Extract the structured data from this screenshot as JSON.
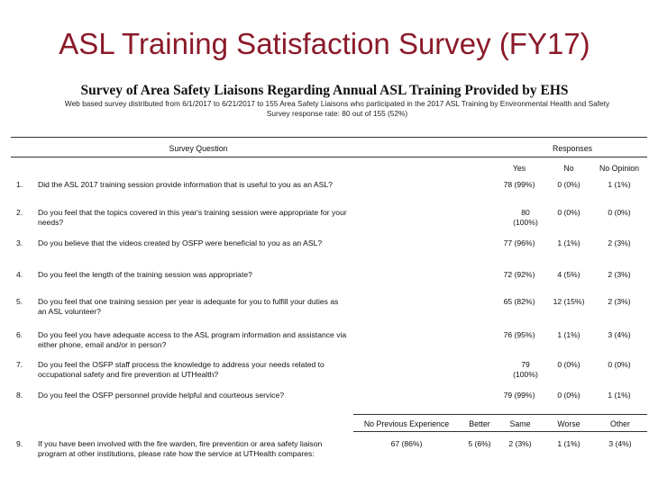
{
  "slide_title": "ASL Training Satisfaction Survey (FY17)",
  "survey": {
    "title": "Survey of Area Safety Liaisons Regarding Annual ASL Training Provided by EHS",
    "description": "Web based survey distributed from 6/1/2017 to 6/21/2017 to 155 Area Safety Liaisons who participated in the 2017 ASL Training by Environmental Health and Safety",
    "response_rate": "Survey response rate: 80 out of 155 (52%)"
  },
  "table": {
    "header_question": "Survey Question",
    "header_responses": "Responses",
    "response_columns": [
      "Yes",
      "No",
      "No Opinion"
    ],
    "rows": [
      {
        "num": "1.",
        "q": "Did the ASL 2017 training session provide information that is useful to you as an ASL?",
        "yes": "78 (99%)",
        "no": "0 (0%)",
        "no_opinion": "1 (1%)"
      },
      {
        "num": "2.",
        "q": "Do you feel that the topics covered in this year's training session were appropriate for your needs?",
        "yes": "80 (100%)",
        "no": "0 (0%)",
        "no_opinion": "0 (0%)"
      },
      {
        "num": "3.",
        "q": "Do you believe that the videos created by OSFP were beneficial to you as an ASL?",
        "yes": "77 (96%)",
        "no": "1 (1%)",
        "no_opinion": "2 (3%)"
      },
      {
        "num": "4.",
        "q": "Do you feel the length of the training session was appropriate?",
        "yes": "72 (92%)",
        "no": "4 (5%)",
        "no_opinion": "2 (3%)"
      },
      {
        "num": "5.",
        "q": "Do you feel that one training session per year is adequate for you to fulfill your duties as an ASL volunteer?",
        "yes": "65 (82%)",
        "no": "12 (15%)",
        "no_opinion": "2 (3%)"
      },
      {
        "num": "6.",
        "q": "Do you feel you have adequate access to the ASL program information and assistance via either phone, email and/or in person?",
        "yes": "76 (95%)",
        "no": "1 (1%)",
        "no_opinion": "3 (4%)"
      },
      {
        "num": "7.",
        "q": "Do you feel the OSFP staff process the knowledge to address your needs related to occupational safety and fire prevention at UTHealth?",
        "yes": "79 (100%)",
        "no": "0 (0%)",
        "no_opinion": "0 (0%)"
      },
      {
        "num": "8.",
        "q": "Do you feel the OSFP personnel provide helpful and courteous service?",
        "yes": "79 (99%)",
        "no": "0 (0%)",
        "no_opinion": "1 (1%)"
      }
    ],
    "comparison_columns": [
      "No Previous Experience",
      "Better",
      "Same",
      "Worse",
      "Other"
    ],
    "comparison_row": {
      "num": "9.",
      "q": "If you have been involved with the fire warden, fire prevention or area safety liaison program at other institutions, please rate how the service at UTHealth compares:",
      "values": [
        "67 (86%)",
        "5 (6%)",
        "2 (3%)",
        "1 (1%)",
        "3 (4%)"
      ]
    }
  }
}
